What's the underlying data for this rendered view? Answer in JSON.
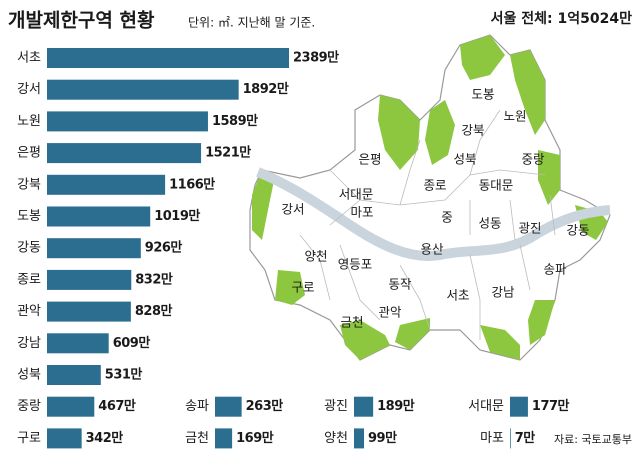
{
  "chart_data": {
    "type": "bar",
    "orientation": "horizontal",
    "title": "개발제한구역 현황",
    "subtitle": "단위: ㎡. 지난해 말 기준.",
    "annotation": "서울 전체: 1억5024만",
    "source": "자료: 국토교통부",
    "color": "#2b6e8f",
    "categories": [
      "서초",
      "강서",
      "노원",
      "은평",
      "강북",
      "도봉",
      "강동",
      "종로",
      "관악",
      "강남",
      "성북",
      "중랑",
      "구로",
      "송파",
      "광진",
      "서대문",
      "금천",
      "양천",
      "마포"
    ],
    "values": [
      2389,
      1892,
      1589,
      1521,
      1166,
      1019,
      926,
      832,
      828,
      609,
      531,
      467,
      342,
      263,
      189,
      177,
      169,
      99,
      7
    ],
    "value_labels": [
      "2389만",
      "1892만",
      "1589만",
      "1521만",
      "1166만",
      "1019만",
      "926만",
      "832만",
      "828만",
      "609만",
      "531만",
      "467만",
      "342만",
      "263만",
      "189만",
      "177만",
      "169만",
      "99만",
      "7만"
    ]
  },
  "map": {
    "labels": [
      "도봉",
      "노원",
      "강북",
      "은평",
      "성북",
      "중랑",
      "서대문",
      "종로",
      "동대문",
      "강서",
      "마포",
      "중",
      "성동",
      "광진",
      "강동",
      "양천",
      "영등포",
      "용산",
      "동작",
      "송파",
      "구로",
      "서초",
      "강남",
      "금천",
      "관악"
    ]
  }
}
